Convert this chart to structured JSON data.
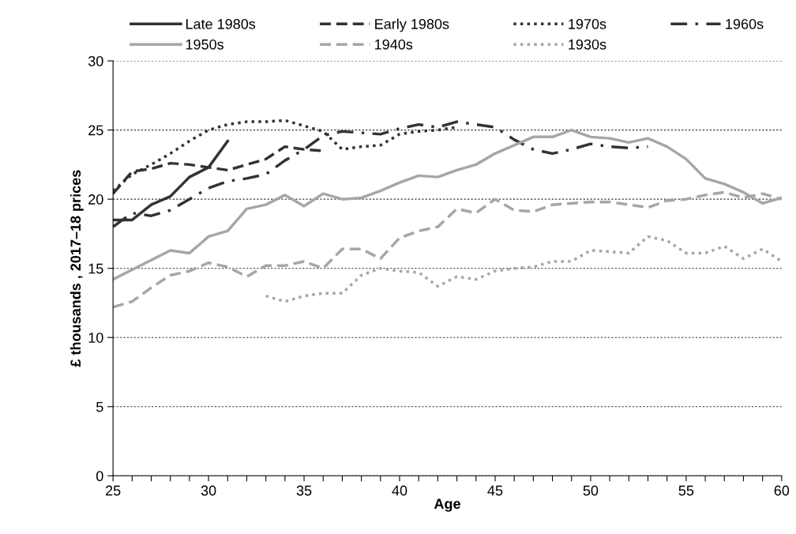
{
  "chart_data": {
    "type": "line",
    "xlabel": "Age",
    "ylabel": "£ thousands , 2017–18 prices",
    "xlim": [
      25,
      60
    ],
    "ylim": [
      0,
      30
    ],
    "xticks": [
      25,
      {
        "value": 26,
        "label": null
      },
      {
        "value": 27,
        "label": null
      },
      {
        "value": 28,
        "label": null
      },
      {
        "value": 29,
        "label": null
      },
      30,
      {
        "value": 31,
        "label": null
      },
      {
        "value": 32,
        "label": null
      },
      {
        "value": 33,
        "label": null
      },
      {
        "value": 34,
        "label": null
      },
      35,
      {
        "value": 36,
        "label": null
      },
      {
        "value": 37,
        "label": null
      },
      {
        "value": 38,
        "label": null
      },
      {
        "value": 39,
        "label": null
      },
      40,
      {
        "value": 41,
        "label": null
      },
      {
        "value": 42,
        "label": null
      },
      {
        "value": 43,
        "label": null
      },
      {
        "value": 44,
        "label": null
      },
      45,
      {
        "value": 46,
        "label": null
      },
      {
        "value": 47,
        "label": null
      },
      {
        "value": 48,
        "label": null
      },
      {
        "value": 49,
        "label": null
      },
      50,
      {
        "value": 51,
        "label": null
      },
      {
        "value": 52,
        "label": null
      },
      {
        "value": 53,
        "label": null
      },
      {
        "value": 54,
        "label": null
      },
      55,
      {
        "value": 56,
        "label": null
      },
      {
        "value": 57,
        "label": null
      },
      {
        "value": 58,
        "label": null
      },
      {
        "value": 59,
        "label": null
      },
      60
    ],
    "yticks": [
      0,
      5,
      10,
      15,
      20,
      25,
      30
    ],
    "grid": "y",
    "legend": "top",
    "marker": "none",
    "series": [
      {
        "name": "Late 1980s",
        "color": "#333333",
        "line_style": "solid",
        "x": [
          25,
          26,
          27,
          28,
          29,
          30,
          31
        ],
        "values": [
          18.5,
          18.5,
          19.6,
          20.2,
          21.6,
          22.3,
          24.2
        ]
      },
      {
        "name": "Early 1980s",
        "color": "#333333",
        "line_style": "dashed",
        "x": [
          25,
          26,
          27,
          28,
          29,
          30,
          31,
          32,
          33,
          34,
          35,
          36
        ],
        "values": [
          20.4,
          22.0,
          22.2,
          22.6,
          22.5,
          22.3,
          22.1,
          22.5,
          22.9,
          23.8,
          23.6,
          23.5
        ]
      },
      {
        "name": "1970s",
        "color": "#333333",
        "line_style": "dotted",
        "x": [
          25,
          26,
          27,
          28,
          29,
          30,
          31,
          32,
          33,
          34,
          35,
          36,
          37,
          38,
          39,
          40,
          41,
          42,
          43
        ],
        "values": [
          20.6,
          21.8,
          22.5,
          23.3,
          24.2,
          25.0,
          25.4,
          25.6,
          25.6,
          25.7,
          25.3,
          24.9,
          23.6,
          23.8,
          23.9,
          24.7,
          24.9,
          25.0,
          25.2
        ]
      },
      {
        "name": "1960s",
        "color": "#333333",
        "line_style": "dashdot",
        "x": [
          25,
          26,
          27,
          28,
          29,
          30,
          31,
          32,
          33,
          34,
          35,
          36,
          37,
          38,
          39,
          40,
          41,
          42,
          43,
          44,
          45,
          46,
          47,
          48,
          49,
          50,
          51,
          52,
          53
        ],
        "values": [
          18.0,
          19.0,
          18.8,
          19.2,
          20.0,
          20.8,
          21.3,
          21.5,
          21.8,
          22.8,
          23.6,
          24.6,
          24.9,
          24.8,
          24.7,
          25.1,
          25.4,
          25.2,
          25.6,
          25.4,
          25.2,
          24.3,
          23.6,
          23.3,
          23.6,
          24.0,
          23.8,
          23.7,
          23.8
        ]
      },
      {
        "name": "1950s",
        "color": "#a6a6a6",
        "line_style": "solid",
        "x": [
          25,
          26,
          27,
          28,
          29,
          30,
          31,
          32,
          33,
          34,
          35,
          36,
          37,
          38,
          39,
          40,
          41,
          42,
          43,
          44,
          45,
          46,
          47,
          48,
          49,
          50,
          51,
          52,
          53,
          54,
          55,
          56,
          57,
          58,
          59,
          60
        ],
        "values": [
          14.2,
          14.9,
          15.6,
          16.3,
          16.1,
          17.3,
          17.7,
          19.3,
          19.6,
          20.3,
          19.5,
          20.4,
          20.0,
          20.1,
          20.6,
          21.2,
          21.7,
          21.6,
          22.1,
          22.5,
          23.3,
          23.9,
          24.5,
          24.5,
          25.0,
          24.5,
          24.4,
          24.1,
          24.4,
          23.8,
          22.9,
          21.5,
          21.1,
          20.5,
          19.7,
          20.1
        ]
      },
      {
        "name": "1940s",
        "color": "#a6a6a6",
        "line_style": "dashed",
        "x": [
          25,
          26,
          27,
          28,
          29,
          30,
          31,
          32,
          33,
          34,
          35,
          36,
          37,
          38,
          39,
          40,
          41,
          42,
          43,
          44,
          45,
          46,
          47,
          48,
          49,
          50,
          51,
          52,
          53,
          54,
          55,
          56,
          57,
          58,
          59,
          60
        ],
        "values": [
          12.2,
          12.6,
          13.6,
          14.5,
          14.8,
          15.4,
          15.1,
          14.4,
          15.2,
          15.2,
          15.5,
          15.0,
          16.4,
          16.4,
          15.7,
          17.2,
          17.7,
          18.0,
          19.3,
          19.0,
          20.0,
          19.2,
          19.1,
          19.6,
          19.7,
          19.8,
          19.8,
          19.6,
          19.4,
          19.9,
          20.0,
          20.3,
          20.5,
          20.1,
          20.4,
          20.0
        ]
      },
      {
        "name": "1930s",
        "color": "#a6a6a6",
        "line_style": "dotted",
        "x": [
          33,
          34,
          35,
          36,
          37,
          38,
          39,
          40,
          41,
          42,
          43,
          44,
          45,
          46,
          47,
          48,
          49,
          50,
          51,
          52,
          53,
          54,
          55,
          56,
          57,
          58,
          59,
          60
        ],
        "values": [
          13.0,
          12.6,
          13.0,
          13.2,
          13.2,
          14.5,
          15.0,
          14.8,
          14.7,
          13.7,
          14.4,
          14.2,
          14.8,
          15.0,
          15.1,
          15.5,
          15.5,
          16.3,
          16.2,
          16.1,
          17.3,
          17.0,
          16.1,
          16.1,
          16.6,
          15.7,
          16.4,
          15.5
        ]
      }
    ]
  }
}
